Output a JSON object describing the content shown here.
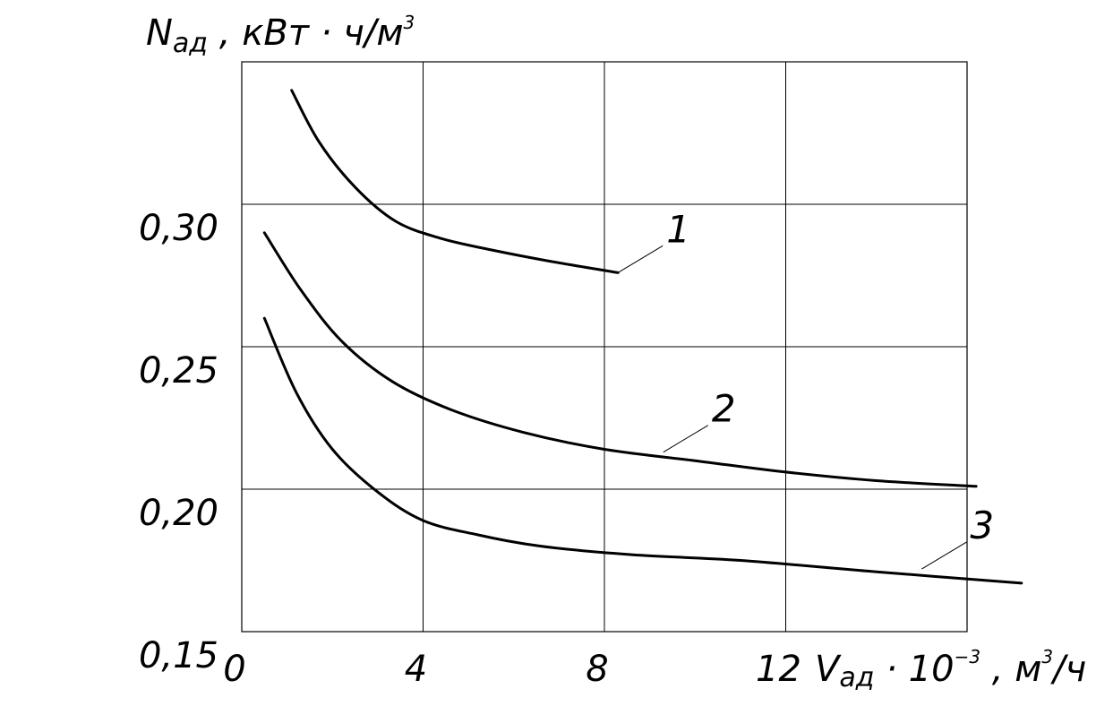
{
  "chart_data": {
    "type": "line",
    "ylabel": {
      "main": "N",
      "sub": "ад",
      "units_prefix": " , кВт · ч/м",
      "units_exp": "3"
    },
    "xlabel": {
      "main": "V",
      "sub": "ад",
      "mid": " · 10",
      "exp": "−3",
      "units_prefix": " ,  м",
      "units_exp": "3",
      "units_suffix": "/ч"
    },
    "xlim": [
      0,
      16
    ],
    "ylim": [
      0.15,
      0.35
    ],
    "x_ticks": [
      {
        "value": 0,
        "label": "0"
      },
      {
        "value": 4,
        "label": "4"
      },
      {
        "value": 8,
        "label": "8"
      },
      {
        "value": 12,
        "label": "12"
      }
    ],
    "y_ticks": [
      {
        "value": 0.3,
        "label": "0,30"
      },
      {
        "value": 0.25,
        "label": "0,25"
      },
      {
        "value": 0.2,
        "label": "0,20"
      },
      {
        "value": 0.15,
        "label": "0,15"
      }
    ],
    "grid": true,
    "series": [
      {
        "name": "1",
        "x": [
          1.1,
          1.7,
          2.5,
          3.4,
          4.4,
          5.5,
          6.8,
          8.3
        ],
        "y": [
          0.34,
          0.322,
          0.306,
          0.294,
          0.288,
          0.284,
          0.28,
          0.276
        ]
      },
      {
        "name": "2",
        "x": [
          0.5,
          1.3,
          2.2,
          3.3,
          4.6,
          6.2,
          8.0,
          10.0,
          12.0,
          14.0,
          16.2
        ],
        "y": [
          0.29,
          0.27,
          0.252,
          0.238,
          0.228,
          0.22,
          0.214,
          0.21,
          0.206,
          0.203,
          0.201
        ]
      },
      {
        "name": "3",
        "x": [
          0.5,
          1.2,
          2.0,
          3.0,
          4.0,
          5.2,
          6.6,
          8.6,
          11.0,
          14.0,
          17.2
        ],
        "y": [
          0.26,
          0.234,
          0.214,
          0.199,
          0.189,
          0.184,
          0.18,
          0.177,
          0.175,
          0.171,
          0.167
        ]
      }
    ],
    "annotations": [
      {
        "series": "1",
        "label": "1",
        "anchor_x": 8.3,
        "anchor_y": 0.276
      },
      {
        "series": "2",
        "label": "2",
        "anchor_x": 9.3,
        "anchor_y": 0.213
      },
      {
        "series": "3",
        "label": "3",
        "anchor_x": 15.0,
        "anchor_y": 0.172
      }
    ]
  }
}
